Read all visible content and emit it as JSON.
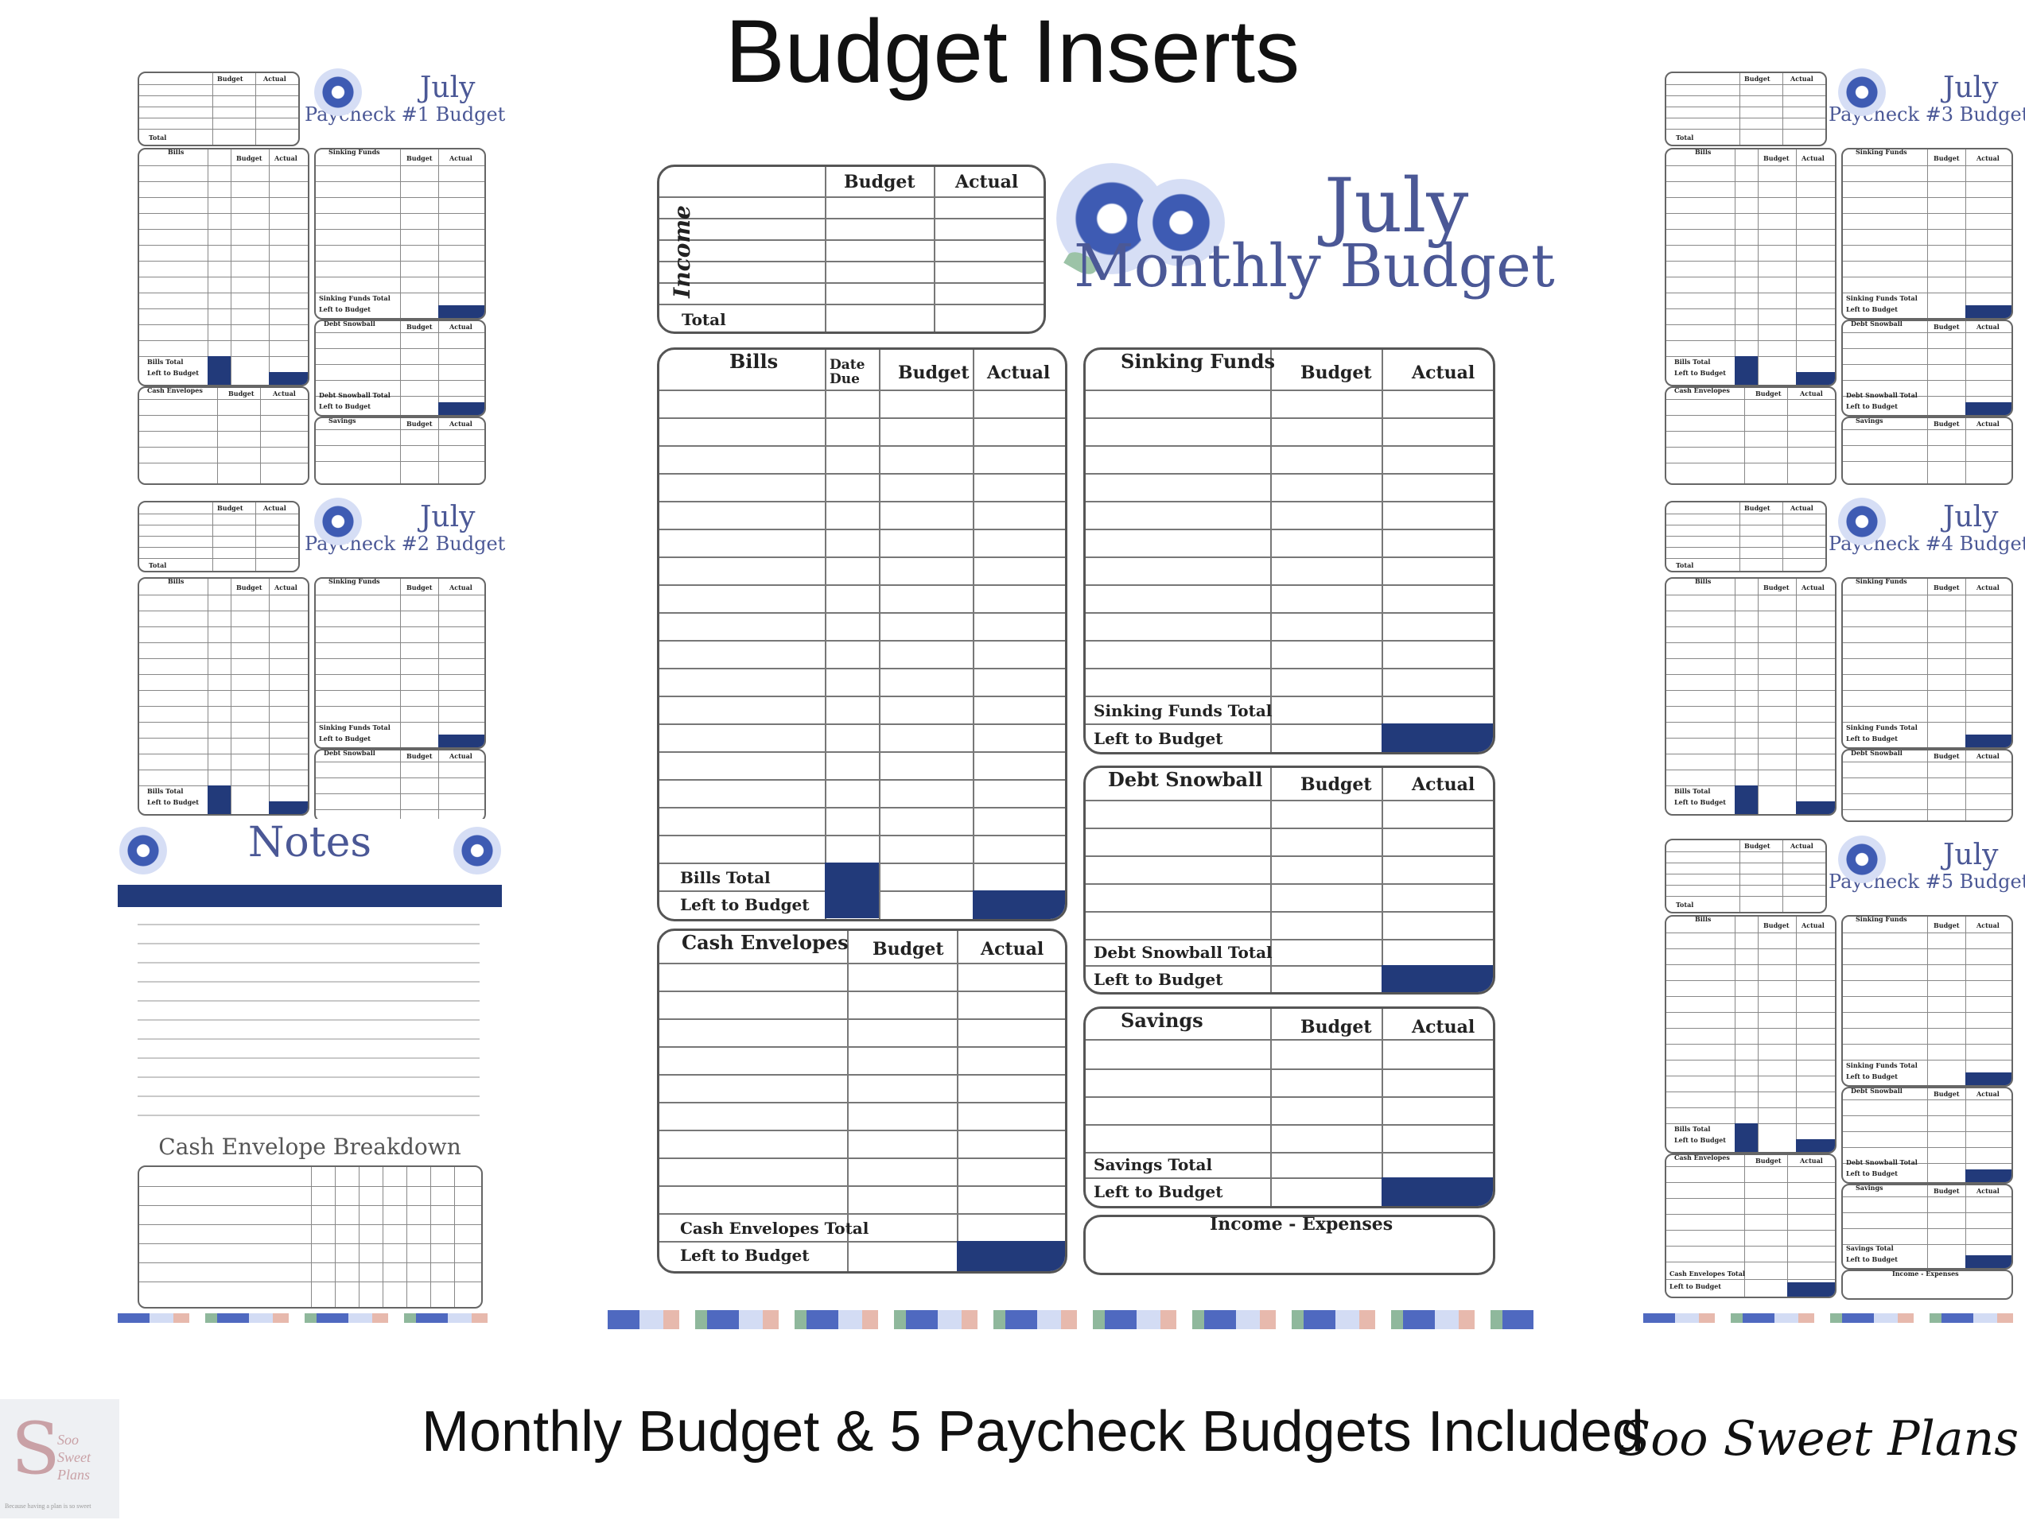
{
  "header": {
    "title": "Budget Inserts"
  },
  "footer": {
    "subtitle": "Monthly Budget & 5 Paycheck Budgets Included",
    "brand": "Soo Sweet Plans"
  },
  "logo": {
    "line1": "Soo",
    "line2": "Sweet",
    "line3": "Plans",
    "tagline": "Because having a plan is so sweet"
  },
  "colors": {
    "accent": "#223a7a",
    "heading": "#4b5896",
    "line": "#777777"
  },
  "monthly": {
    "month": "July",
    "title": "Monthly Budget",
    "income": {
      "label": "Income",
      "budget": "Budget",
      "actual": "Actual",
      "total": "Total"
    },
    "bills": {
      "label": "Bills",
      "due": "Date Due",
      "budget": "Budget",
      "actual": "Actual",
      "total": "Bills Total",
      "left": "Left to Budget"
    },
    "cash": {
      "label": "Cash Envelopes",
      "budget": "Budget",
      "actual": "Actual",
      "total": "Cash Envelopes Total",
      "left": "Left to Budget"
    },
    "sinking": {
      "label": "Sinking Funds",
      "budget": "Budget",
      "actual": "Actual",
      "total": "Sinking Funds Total",
      "left": "Left to Budget"
    },
    "debt": {
      "label": "Debt Snowball",
      "budget": "Budget",
      "actual": "Actual",
      "total": "Debt Snowball Total",
      "left": "Left to Budget"
    },
    "savings": {
      "label": "Savings",
      "budget": "Budget",
      "actual": "Actual",
      "total": "Savings Total",
      "left": "Left to Budget"
    },
    "net": {
      "label": "Income - Expenses"
    }
  },
  "paychecks": [
    {
      "month": "July",
      "title": "Paycheck #1 Budget"
    },
    {
      "month": "July",
      "title": "Paycheck #2 Budget"
    },
    {
      "month": "July",
      "title": "Paycheck #3 Budget"
    },
    {
      "month": "July",
      "title": "Paycheck #4 Budget"
    },
    {
      "month": "July",
      "title": "Paycheck #5 Budget"
    }
  ],
  "mini_labels": {
    "budget": "Budget",
    "actual": "Actual",
    "total": "Total",
    "bills": "Bills",
    "due": "Date Due",
    "sinking": "Sinking Funds",
    "sinking_total": "Sinking Funds Total",
    "left": "Left to Budget",
    "debt": "Debt Snowball",
    "debt_total": "Debt Snowball Total",
    "savings": "Savings",
    "bills_total": "Bills Total",
    "cash": "Cash Envelopes",
    "income": "Income",
    "savings_total": "Savings Total",
    "cash_total": "Cash Envelopes Total",
    "net": "Income - Expenses"
  },
  "notes": {
    "title": "Notes",
    "breakdown": "Cash Envelope Breakdown"
  }
}
